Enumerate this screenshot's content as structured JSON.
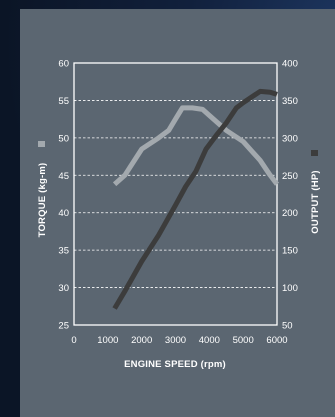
{
  "chart_data": {
    "type": "line",
    "xlabel": "ENGINE SPEED (rpm)",
    "ylabel_left": "TORQUE (kg-m)",
    "ylabel_right": "OUTPUT (HP)",
    "x_ticks": [
      "0",
      "1000",
      "2000",
      "3000",
      "4000",
      "5000",
      "6000"
    ],
    "x_tick_values": [
      0,
      1000,
      2000,
      3000,
      4000,
      5000,
      6000
    ],
    "y_left_ticks": [
      "25",
      "30",
      "35",
      "40",
      "45",
      "50",
      "55",
      "60"
    ],
    "y_left_tick_values": [
      25,
      30,
      35,
      40,
      45,
      50,
      55,
      60
    ],
    "y_right_ticks": [
      "50",
      "100",
      "150",
      "200",
      "250",
      "300",
      "350",
      "400"
    ],
    "y_right_tick_values": [
      50,
      100,
      150,
      200,
      250,
      300,
      350,
      400
    ],
    "xlim": [
      0,
      6000
    ],
    "ylim_left": [
      25,
      60
    ],
    "ylim_right": [
      50,
      400
    ],
    "grid": "horizontal dashed",
    "series": [
      {
        "key": "torque",
        "axis": "left",
        "color": "#a3a9ae",
        "x": [
          1200,
          1500,
          2000,
          2500,
          2800,
          3000,
          3200,
          3500,
          3800,
          4000,
          4500,
          5000,
          5300,
          5500,
          5800,
          6000
        ],
        "y": [
          43.8,
          45,
          48.5,
          50,
          51,
          52.5,
          54,
          54,
          53.8,
          53,
          51,
          49.5,
          48,
          47,
          45,
          43.8
        ]
      },
      {
        "key": "output",
        "axis": "right",
        "color": "#3c3c3c",
        "x": [
          1200,
          1500,
          2000,
          2500,
          3000,
          3300,
          3600,
          3900,
          4200,
          4500,
          4800,
          5000,
          5200,
          5500,
          5800,
          6000
        ],
        "y": [
          72,
          95,
          135,
          170,
          210,
          235,
          255,
          285,
          303,
          320,
          340,
          347,
          353,
          362,
          361,
          358
        ]
      }
    ]
  },
  "legend_colors": {
    "torque": "#a3a9ae",
    "output": "#3c3c3c"
  }
}
